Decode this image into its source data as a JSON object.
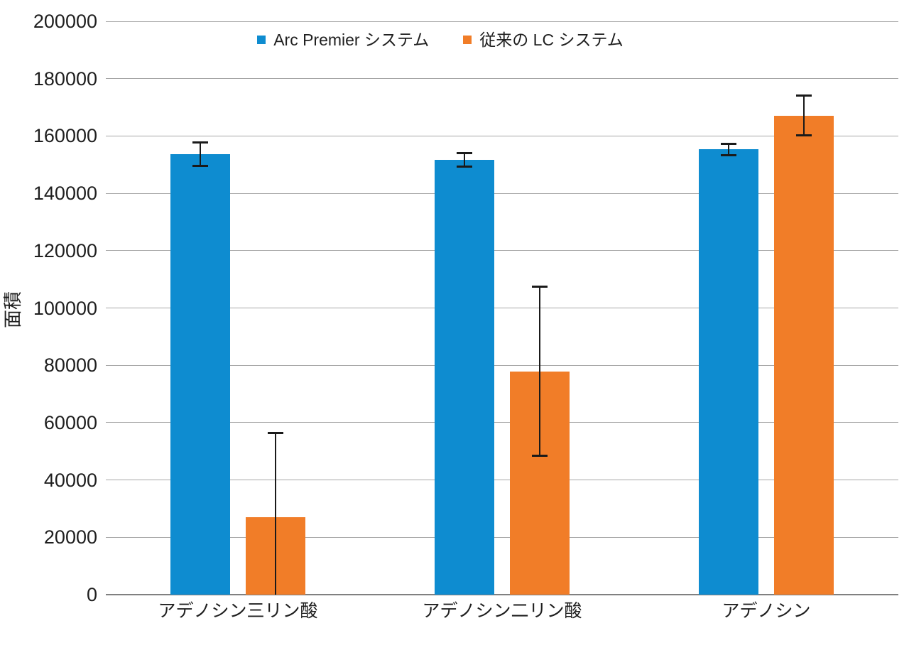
{
  "chart_data": {
    "type": "bar",
    "title": "",
    "xlabel": "",
    "ylabel": "面積",
    "categories": [
      "アデノシン三リン酸",
      "アデノシン二リン酸",
      "アデノシン"
    ],
    "series": [
      {
        "name": "Arc Premier システム",
        "color": "#0e8cd0",
        "values": [
          153700,
          151700,
          155300
        ],
        "errors": [
          4200,
          2400,
          2100
        ]
      },
      {
        "name": "従来の LC システム",
        "color": "#f17d28",
        "values": [
          26900,
          77900,
          167100
        ],
        "errors": [
          29700,
          29600,
          7100
        ]
      }
    ],
    "ylim": [
      0,
      200000
    ],
    "ytick_step": 20000,
    "grid": true,
    "legend_position": "top-center",
    "gridline_color": "#a6a6a6",
    "axis_line_color": "#808080",
    "error_bar_color": "#1a1a1a",
    "text_color": "#1f1f1f"
  }
}
